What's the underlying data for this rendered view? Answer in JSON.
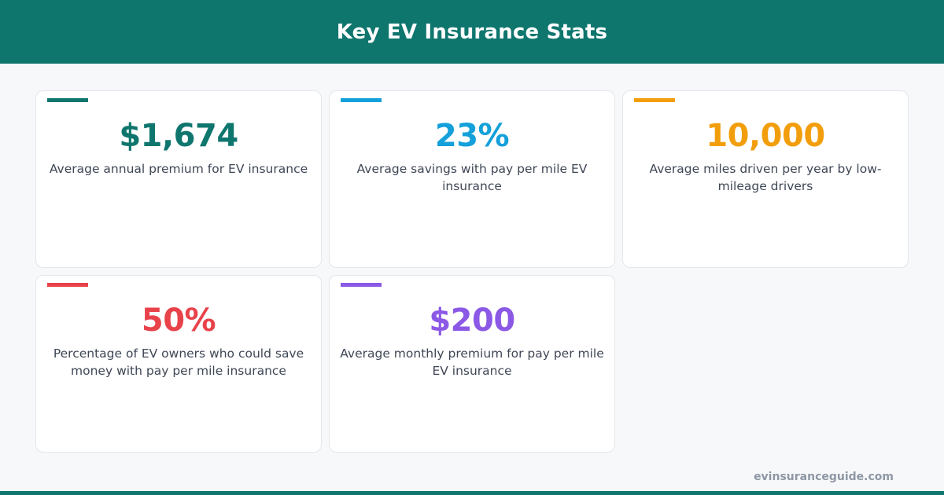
{
  "header": {
    "title": "Key EV Insurance Stats"
  },
  "stats": [
    {
      "value": "$1,674",
      "description": "Average annual premium for EV insurance",
      "color": "#0f766e"
    },
    {
      "value": "23%",
      "description": "Average savings with pay per mile EV insurance",
      "color": "#14a0da"
    },
    {
      "value": "10,000",
      "description": "Average miles driven per year by low-mileage drivers",
      "color": "#f29e0c"
    },
    {
      "value": "50%",
      "description": "Percentage of EV owners who could save money with pay per mile insurance",
      "color": "#e8424a"
    },
    {
      "value": "$200",
      "description": "Average monthly premium for pay per mile EV insurance",
      "color": "#8b59e6"
    }
  ],
  "footer": {
    "url": "evinsuranceguide.com"
  }
}
